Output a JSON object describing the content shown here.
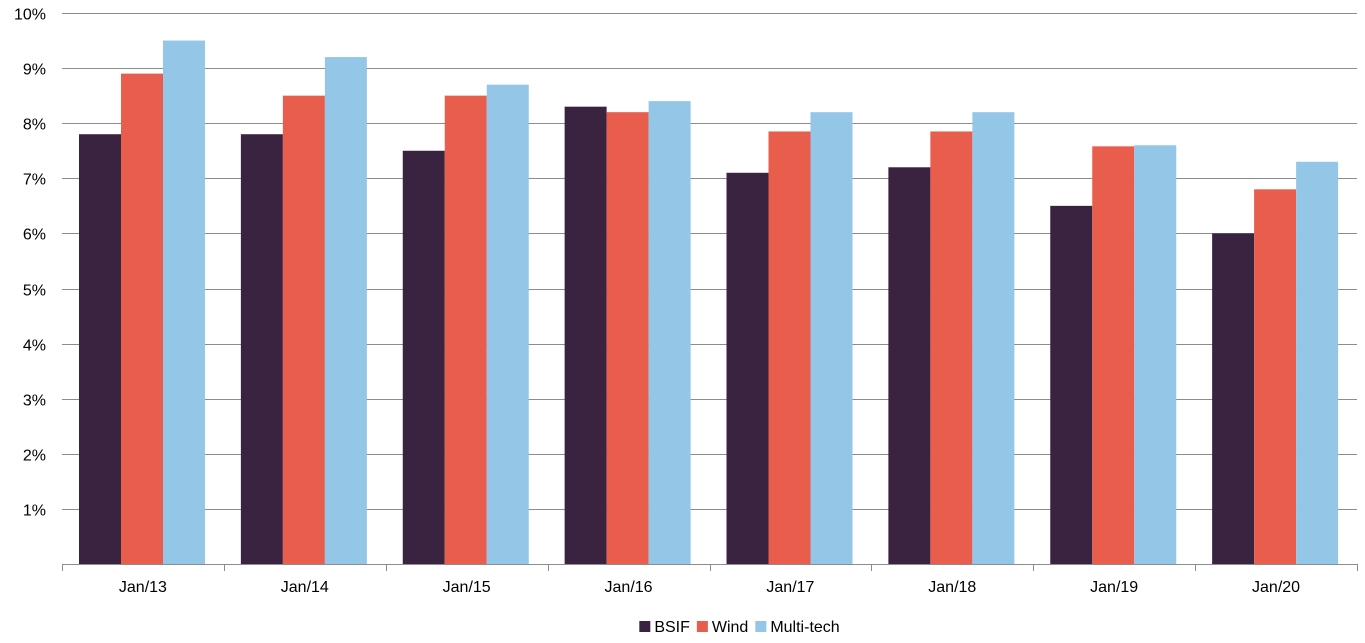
{
  "chart_data": {
    "type": "bar",
    "title": "",
    "xlabel": "",
    "ylabel": "",
    "categories": [
      "Jan/13",
      "Jan/14",
      "Jan/15",
      "Jan/16",
      "Jan/17",
      "Jan/18",
      "Jan/19",
      "Jan/20"
    ],
    "series": [
      {
        "name": "BSIF",
        "color": "#3a2341",
        "values": [
          7.8,
          7.8,
          7.5,
          8.3,
          7.1,
          7.2,
          6.5,
          6.0
        ]
      },
      {
        "name": "Wind",
        "color": "#e85d4c",
        "values": [
          8.9,
          8.5,
          8.5,
          8.2,
          7.85,
          7.85,
          7.58,
          6.8
        ]
      },
      {
        "name": "Multi-tech",
        "color": "#93c6e7",
        "values": [
          9.5,
          9.2,
          8.7,
          8.4,
          8.2,
          8.2,
          7.6,
          7.3
        ]
      }
    ],
    "ylim": [
      0,
      10
    ],
    "yticks": [
      {
        "value": 1,
        "label": "1%"
      },
      {
        "value": 2,
        "label": "2%"
      },
      {
        "value": 3,
        "label": "3%"
      },
      {
        "value": 4,
        "label": "4%"
      },
      {
        "value": 5,
        "label": "5%"
      },
      {
        "value": 6,
        "label": "6%"
      },
      {
        "value": 7,
        "label": "7%"
      },
      {
        "value": 8,
        "label": "8%"
      },
      {
        "value": 9,
        "label": "9%"
      },
      {
        "value": 10,
        "label": "10%"
      }
    ],
    "grid": true,
    "legend_position": "bottom-center",
    "gridline_color": "#8c8c8c",
    "axis_color": "#8c8c8c"
  }
}
